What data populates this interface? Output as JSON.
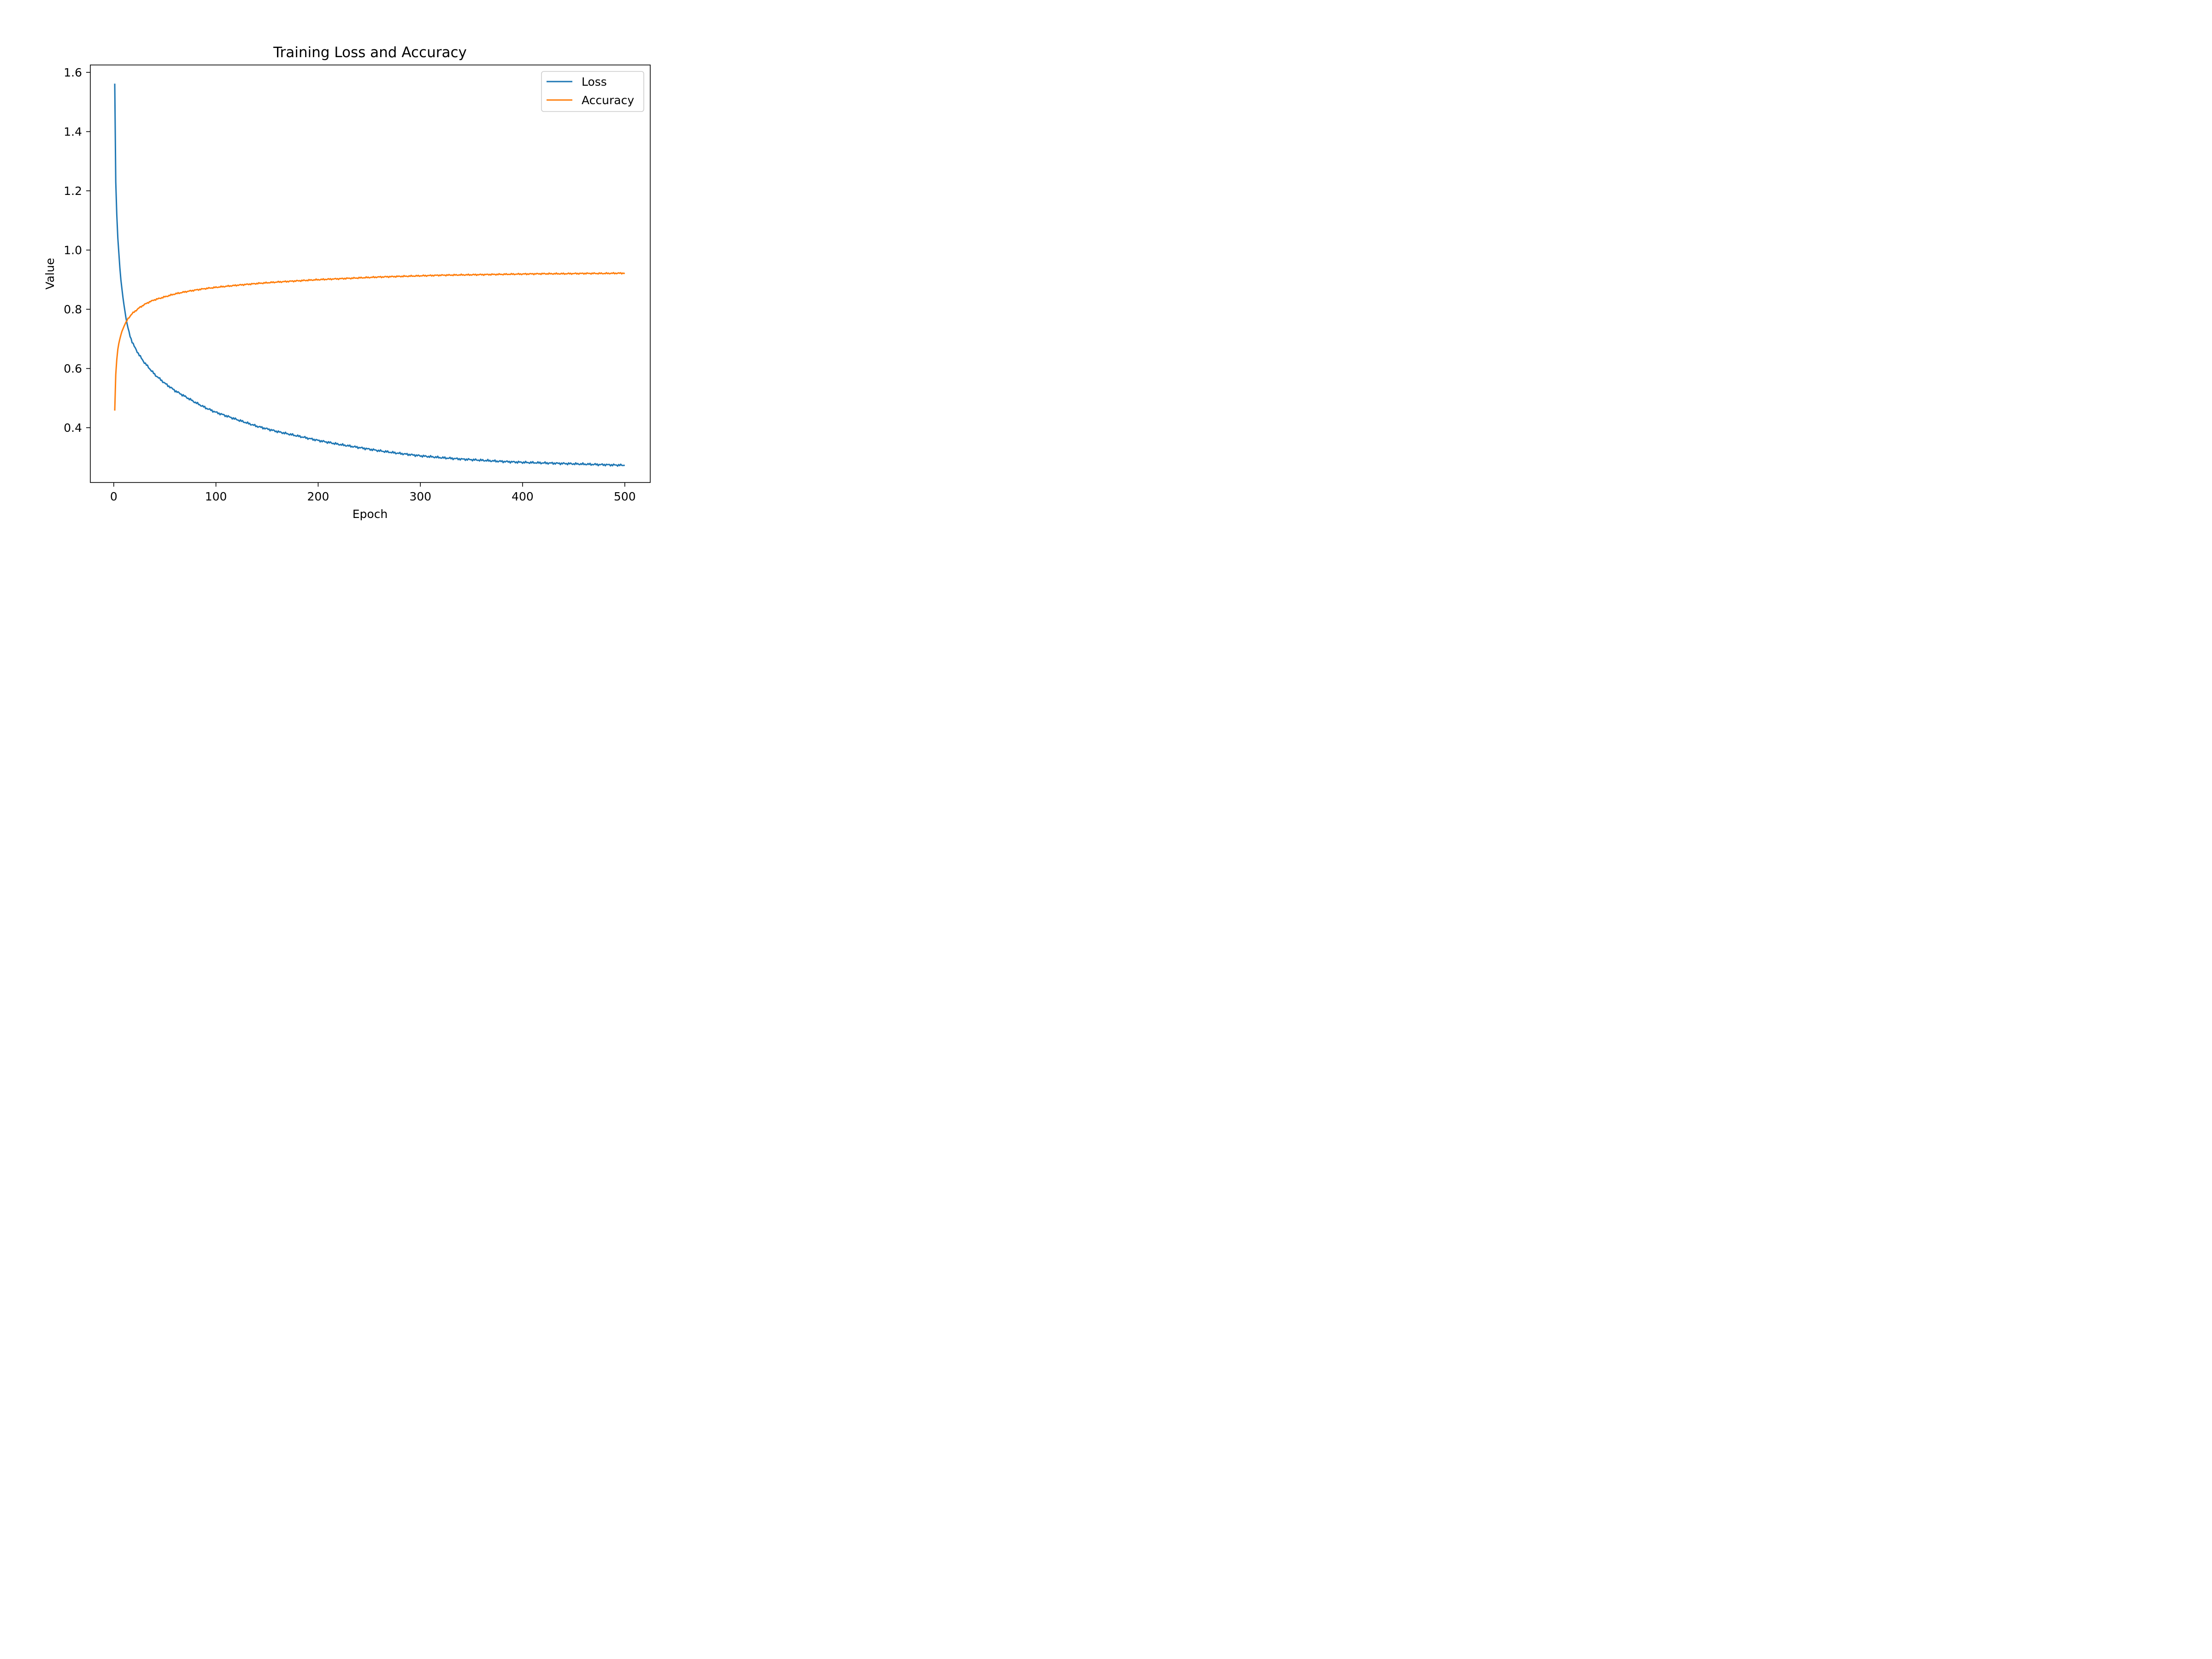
{
  "chart_data": {
    "type": "line",
    "title": "Training Loss and Accuracy",
    "xlabel": "Epoch",
    "ylabel": "Value",
    "xlim": [
      -22.9,
      524.9
    ],
    "ylim": [
      0.215,
      1.625
    ],
    "xticks": [
      {
        "value": 0,
        "label": "0"
      },
      {
        "value": 100,
        "label": "100"
      },
      {
        "value": 200,
        "label": "200"
      },
      {
        "value": 300,
        "label": "300"
      },
      {
        "value": 400,
        "label": "400"
      },
      {
        "value": 500,
        "label": "500"
      }
    ],
    "yticks": [
      {
        "value": 0.4,
        "label": "0.4"
      },
      {
        "value": 0.6,
        "label": "0.6"
      },
      {
        "value": 0.8,
        "label": "0.8"
      },
      {
        "value": 1.0,
        "label": "1.0"
      },
      {
        "value": 1.2,
        "label": "1.2"
      },
      {
        "value": 1.4,
        "label": "1.4"
      },
      {
        "value": 1.6,
        "label": "1.6"
      }
    ],
    "grid": false,
    "legend_position": "top-right",
    "series": [
      {
        "name": "Loss",
        "color": "#1f77b4",
        "x": [
          1,
          2,
          3,
          4,
          5,
          6,
          7,
          8,
          9,
          10,
          12,
          14,
          16,
          18,
          20,
          25,
          30,
          35,
          40,
          45,
          50,
          60,
          70,
          80,
          90,
          100,
          120,
          140,
          160,
          180,
          200,
          220,
          240,
          260,
          280,
          300,
          320,
          340,
          360,
          380,
          400,
          420,
          440,
          460,
          480,
          500
        ],
        "y": [
          1.562,
          1.23,
          1.12,
          1.04,
          0.99,
          0.94,
          0.9,
          0.87,
          0.84,
          0.815,
          0.77,
          0.735,
          0.71,
          0.69,
          0.675,
          0.645,
          0.62,
          0.6,
          0.58,
          0.565,
          0.55,
          0.525,
          0.505,
          0.485,
          0.467,
          0.452,
          0.428,
          0.405,
          0.387,
          0.372,
          0.357,
          0.344,
          0.333,
          0.322,
          0.313,
          0.305,
          0.299,
          0.294,
          0.29,
          0.286,
          0.283,
          0.281,
          0.279,
          0.277,
          0.275,
          0.273
        ]
      },
      {
        "name": "Accuracy",
        "color": "#ff7f0e",
        "x": [
          1,
          2,
          3,
          4,
          5,
          6,
          7,
          8,
          10,
          12,
          14,
          16,
          18,
          20,
          25,
          30,
          35,
          40,
          45,
          50,
          60,
          70,
          80,
          90,
          100,
          120,
          140,
          160,
          180,
          200,
          220,
          240,
          260,
          280,
          300,
          320,
          340,
          360,
          380,
          400,
          420,
          440,
          460,
          480,
          500
        ],
        "y": [
          0.458,
          0.58,
          0.63,
          0.665,
          0.685,
          0.7,
          0.713,
          0.725,
          0.742,
          0.757,
          0.768,
          0.777,
          0.785,
          0.791,
          0.805,
          0.816,
          0.825,
          0.832,
          0.837,
          0.842,
          0.852,
          0.859,
          0.865,
          0.87,
          0.874,
          0.881,
          0.887,
          0.892,
          0.896,
          0.9,
          0.903,
          0.906,
          0.909,
          0.911,
          0.913,
          0.915,
          0.916,
          0.917,
          0.918,
          0.919,
          0.92,
          0.92,
          0.921,
          0.921,
          0.922
        ]
      }
    ]
  }
}
